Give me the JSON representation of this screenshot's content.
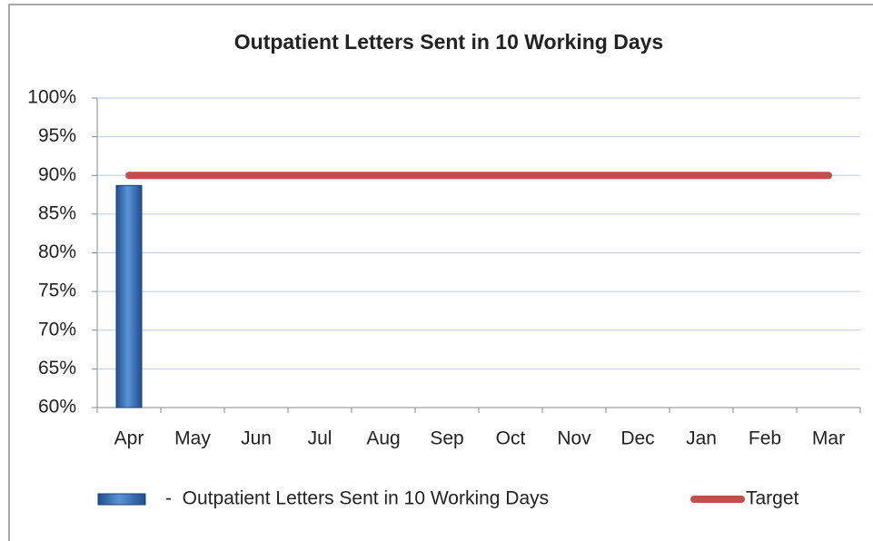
{
  "chart_data": {
    "type": "bar",
    "title": "Outpatient Letters Sent in 10 Working Days",
    "categories": [
      "Apr",
      "May",
      "Jun",
      "Jul",
      "Aug",
      "Sep",
      "Oct",
      "Nov",
      "Dec",
      "Jan",
      "Feb",
      "Mar"
    ],
    "series": [
      {
        "name": "-  Outpatient Letters Sent in 10 Working Days",
        "type": "bar",
        "color": "#2e6fc0",
        "values": [
          88.7,
          null,
          null,
          null,
          null,
          null,
          null,
          null,
          null,
          null,
          null,
          null
        ]
      },
      {
        "name": "Target",
        "type": "line",
        "color": "#c0504d",
        "values": [
          90,
          90,
          90,
          90,
          90,
          90,
          90,
          90,
          90,
          90,
          90,
          90
        ]
      }
    ],
    "ylim": [
      60,
      100
    ],
    "yticks": [
      {
        "value": 60,
        "label": "60%"
      },
      {
        "value": 65,
        "label": "65%"
      },
      {
        "value": 70,
        "label": "70%"
      },
      {
        "value": 75,
        "label": "75%"
      },
      {
        "value": 80,
        "label": "80%"
      },
      {
        "value": 85,
        "label": "85%"
      },
      {
        "value": 90,
        "label": "90%"
      },
      {
        "value": 95,
        "label": "95%"
      },
      {
        "value": 100,
        "label": "100%"
      }
    ],
    "grid": true,
    "legend": "bottom"
  }
}
